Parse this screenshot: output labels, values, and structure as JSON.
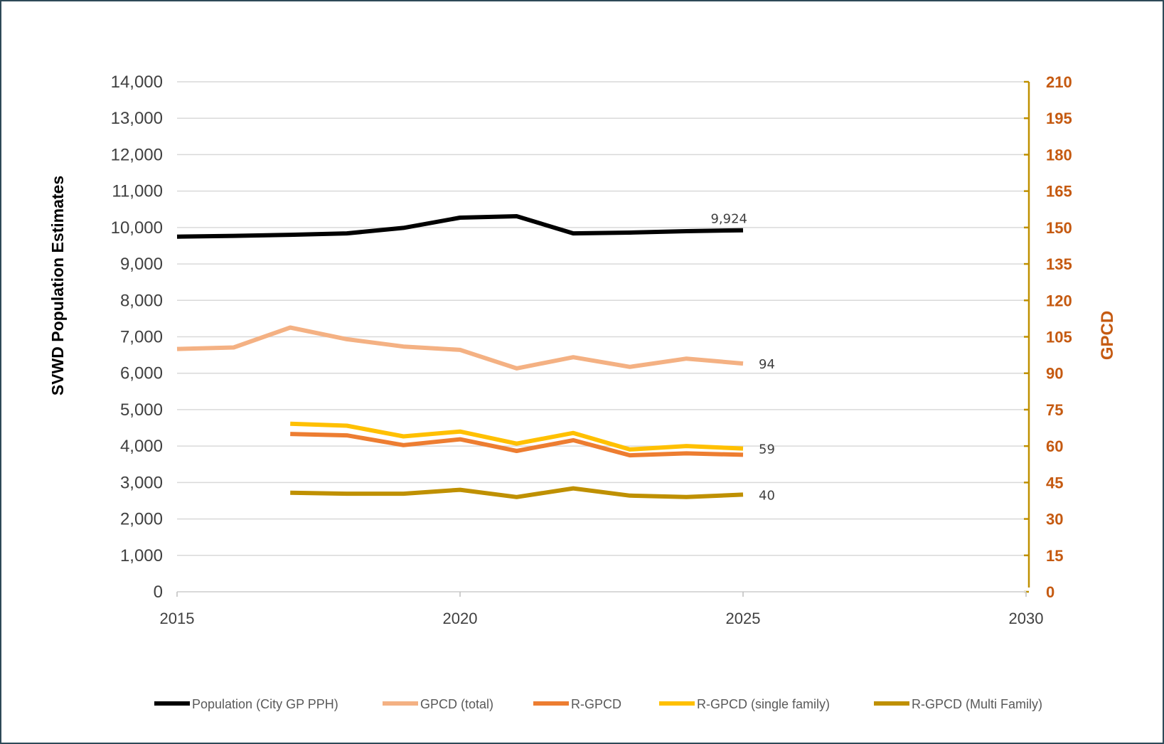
{
  "chart_data": {
    "type": "line",
    "y_axis_left": {
      "label": "SVWD Population Estimates",
      "min": 0,
      "max": 14000,
      "step": 1000,
      "tick_labels": [
        "0",
        "1,000",
        "2,000",
        "3,000",
        "4,000",
        "5,000",
        "6,000",
        "7,000",
        "8,000",
        "9,000",
        "10,000",
        "11,000",
        "12,000",
        "13,000",
        "14,000"
      ]
    },
    "y_axis_right": {
      "label": "GPCD",
      "min": 0,
      "max": 210,
      "step": 15,
      "tick_labels": [
        "0",
        "15",
        "30",
        "45",
        "60",
        "75",
        "90",
        "105",
        "120",
        "135",
        "150",
        "165",
        "180",
        "195",
        "210"
      ],
      "color": "#c55a11",
      "axis_line_color": "#bf9000"
    },
    "x_axis": {
      "min": 2015,
      "max": 2030,
      "tick_labels": [
        "2015",
        "2020",
        "2025",
        "2030"
      ]
    },
    "grid": true,
    "legend_position": "bottom",
    "series": [
      {
        "name": "Population (City GP PPH)",
        "axis": "left",
        "color": "#000000",
        "x": [
          2015,
          2016,
          2017,
          2018,
          2019,
          2020,
          2021,
          2022,
          2023,
          2024,
          2025
        ],
        "y": [
          9750,
          9770,
          9800,
          9840,
          9990,
          10270,
          10310,
          9840,
          9860,
          9900,
          9924
        ],
        "end_label": "9,924"
      },
      {
        "name": "GPCD (total)",
        "axis": "right",
        "color": "#f4b183",
        "x": [
          2015,
          2016,
          2017,
          2018,
          2019,
          2020,
          2021,
          2022,
          2023,
          2024,
          2025
        ],
        "y": [
          100,
          100.6,
          108.8,
          104,
          101,
          99.6,
          92,
          96.6,
          92.6,
          96,
          94
        ],
        "end_label": "94"
      },
      {
        "name": "R-GPCD",
        "axis": "right",
        "color": "#ed7d31",
        "x": [
          2017,
          2018,
          2019,
          2020,
          2021,
          2022,
          2023,
          2024,
          2025
        ],
        "y": [
          65,
          64.4,
          60.4,
          62.8,
          58,
          62.4,
          56.2,
          57,
          56.4
        ]
      },
      {
        "name": "R-GPCD (single family)",
        "axis": "right",
        "color": "#ffc000",
        "x": [
          2017,
          2018,
          2019,
          2020,
          2021,
          2022,
          2023,
          2024,
          2025
        ],
        "y": [
          69.2,
          68.4,
          64,
          66,
          61,
          65.4,
          58.6,
          60,
          59
        ],
        "end_label": "59"
      },
      {
        "name": "R-GPCD (Multi Family)",
        "axis": "right",
        "color": "#bf9000",
        "x": [
          2017,
          2018,
          2019,
          2020,
          2021,
          2022,
          2023,
          2024,
          2025
        ],
        "y": [
          40.8,
          40.4,
          40.4,
          42,
          39,
          42.6,
          39.6,
          39,
          40
        ],
        "end_label": "40"
      }
    ]
  }
}
